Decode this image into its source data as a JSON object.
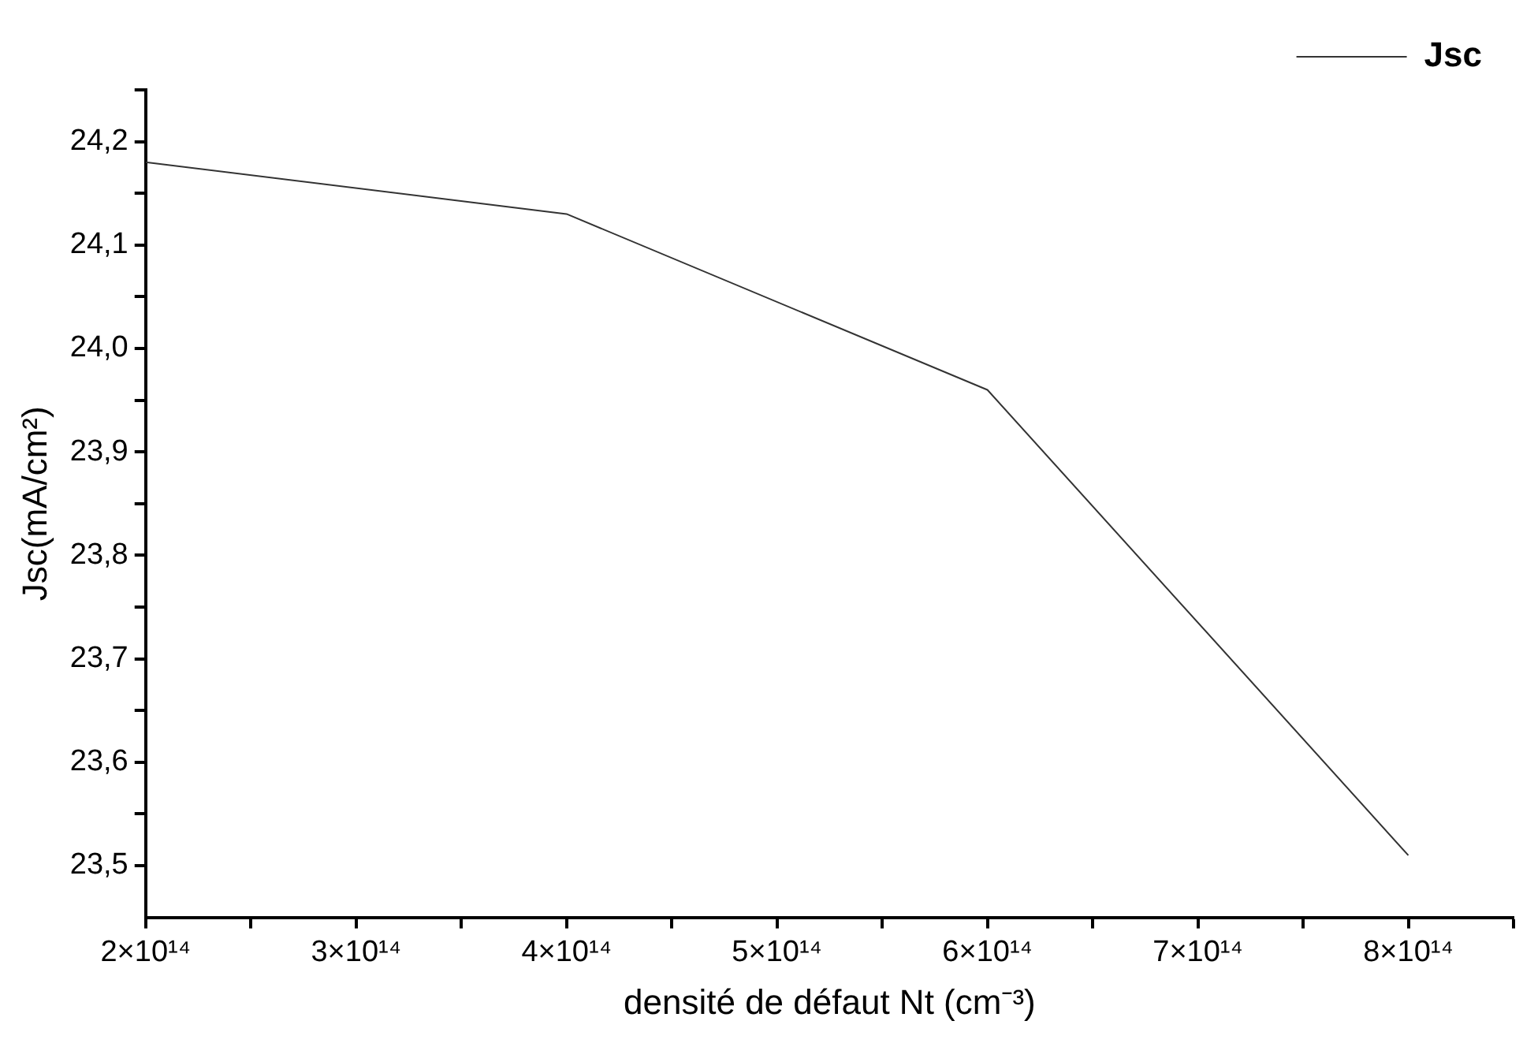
{
  "chart_data": {
    "type": "line",
    "xlabel": "densité de défaut Nt (cm⁻³)",
    "ylabel": "Jsc(mA/cm²)",
    "x": [
      200000000000000.0,
      400000000000000.0,
      600000000000000.0,
      800000000000000.0
    ],
    "series": [
      {
        "name": "Jsc",
        "color": "#333333",
        "values": [
          24.18,
          24.13,
          23.96,
          23.51
        ]
      }
    ],
    "xlim": [
      200000000000000.0,
      850000000000000.0
    ],
    "ylim": [
      23.45,
      24.25
    ],
    "xticks": [
      {
        "value": 200000000000000.0,
        "label": "2×10¹⁴"
      },
      {
        "value": 250000000000000.0,
        "label": null
      },
      {
        "value": 300000000000000.0,
        "label": "3×10¹⁴"
      },
      {
        "value": 350000000000000.0,
        "label": null
      },
      {
        "value": 400000000000000.0,
        "label": "4×10¹⁴"
      },
      {
        "value": 450000000000000.0,
        "label": null
      },
      {
        "value": 500000000000000.0,
        "label": "5×10¹⁴"
      },
      {
        "value": 550000000000000.0,
        "label": null
      },
      {
        "value": 600000000000000.0,
        "label": "6×10¹⁴"
      },
      {
        "value": 650000000000000.0,
        "label": null
      },
      {
        "value": 700000000000000.0,
        "label": "7×10¹⁴"
      },
      {
        "value": 750000000000000.0,
        "label": null
      },
      {
        "value": 800000000000000.0,
        "label": "8×10¹⁴"
      },
      {
        "value": 850000000000000.0,
        "label": null
      }
    ],
    "yticks": [
      {
        "value": 23.5,
        "label": "23,5"
      },
      {
        "value": 23.55,
        "label": null
      },
      {
        "value": 23.6,
        "label": "23,6"
      },
      {
        "value": 23.65,
        "label": null
      },
      {
        "value": 23.7,
        "label": "23,7"
      },
      {
        "value": 23.75,
        "label": null
      },
      {
        "value": 23.8,
        "label": "23,8"
      },
      {
        "value": 23.85,
        "label": null
      },
      {
        "value": 23.9,
        "label": "23,9"
      },
      {
        "value": 23.95,
        "label": null
      },
      {
        "value": 24.0,
        "label": "24,0"
      },
      {
        "value": 24.05,
        "label": null
      },
      {
        "value": 24.1,
        "label": "24,1"
      },
      {
        "value": 24.15,
        "label": null
      },
      {
        "value": 24.2,
        "label": "24,2"
      },
      {
        "value": 24.25,
        "label": null
      }
    ],
    "grid": false,
    "legend": "top right",
    "marker": "none",
    "line_style": "solid"
  }
}
